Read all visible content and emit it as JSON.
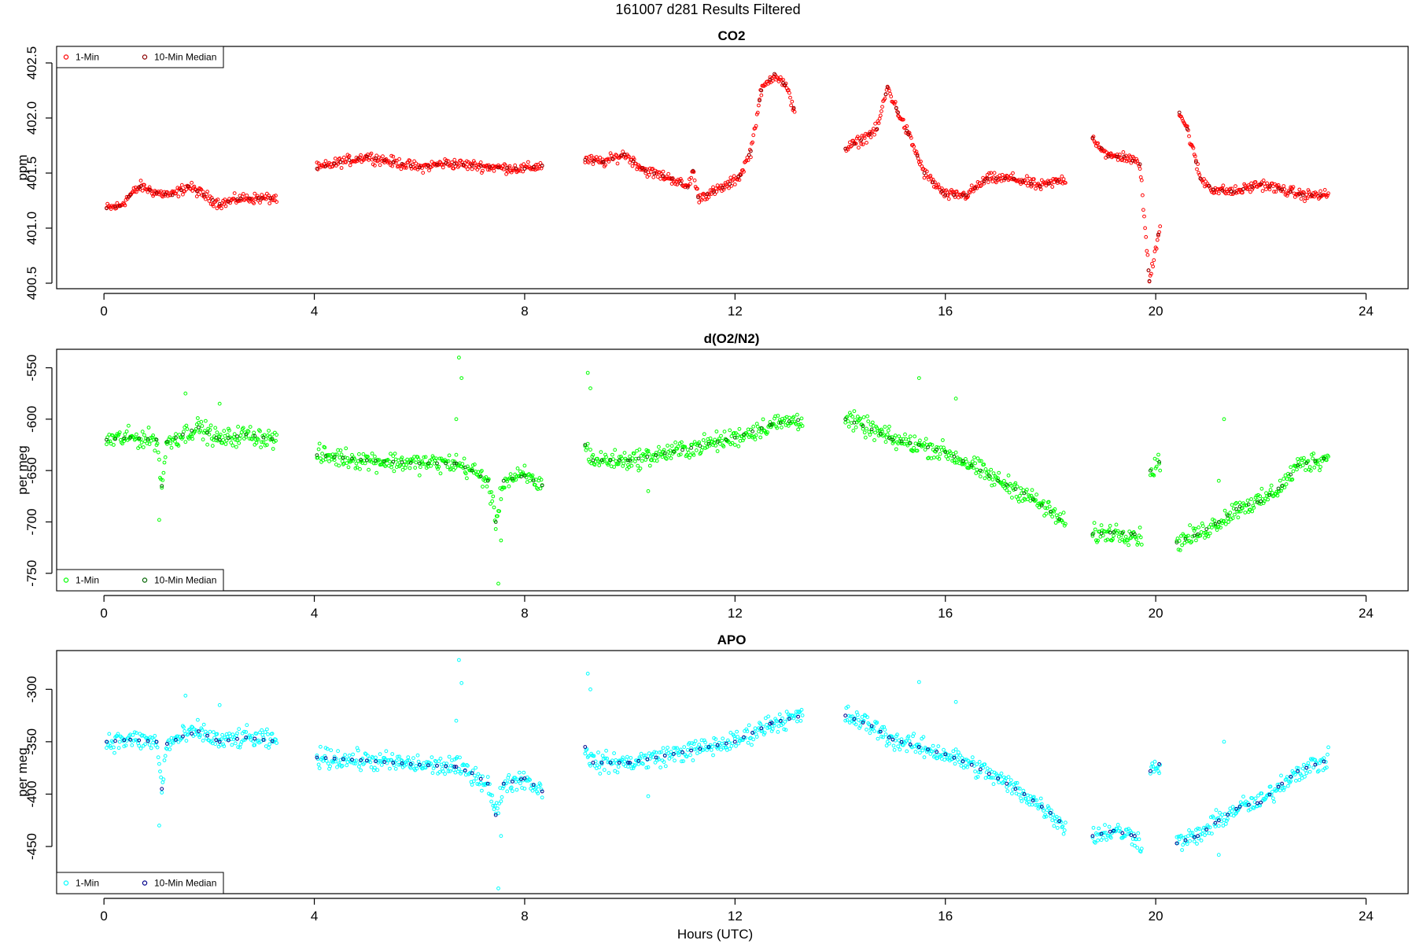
{
  "figure": {
    "title": "161007   d281   Results Filtered",
    "xlabel": "Hours (UTC)"
  },
  "chart_data": [
    {
      "type": "scatter",
      "title": "CO2",
      "xlabel": "",
      "ylabel": "ppm",
      "xlim": [
        -0.9,
        24.8
      ],
      "ylim": [
        400.45,
        402.65
      ],
      "xticks": [
        0,
        4,
        8,
        12,
        16,
        20,
        24
      ],
      "yticks": [
        400.5,
        401.0,
        401.5,
        402.0,
        402.5
      ],
      "ytick_labels": [
        "400.5",
        "401.0",
        "401.5",
        "402.0",
        "402.5"
      ],
      "legend_position": "top-left",
      "series": [
        {
          "name": "1-Min",
          "color": "#ff0000",
          "role": "1min"
        },
        {
          "name": "10-Min Median",
          "color": "#8b0000",
          "role": "median"
        }
      ],
      "trend": [
        [
          [
            0.05,
            401.18
          ],
          [
            0.3,
            401.2
          ],
          [
            0.5,
            401.3
          ],
          [
            0.7,
            401.38
          ],
          [
            1.0,
            401.32
          ],
          [
            1.3,
            401.3
          ],
          [
            1.6,
            401.38
          ],
          [
            1.9,
            401.3
          ],
          [
            2.2,
            401.22
          ],
          [
            2.6,
            401.27
          ],
          [
            3.0,
            401.27
          ],
          [
            3.3,
            401.27
          ]
        ],
        [
          [
            4.05,
            401.54
          ],
          [
            4.5,
            401.6
          ],
          [
            5.0,
            401.65
          ],
          [
            5.5,
            401.6
          ],
          [
            6.0,
            401.55
          ],
          [
            6.5,
            401.59
          ],
          [
            7.0,
            401.57
          ],
          [
            7.5,
            401.55
          ],
          [
            8.0,
            401.54
          ],
          [
            8.35,
            401.57
          ]
        ],
        [
          [
            9.15,
            401.62
          ],
          [
            9.5,
            401.6
          ],
          [
            9.9,
            401.67
          ],
          [
            10.3,
            401.52
          ],
          [
            10.8,
            401.45
          ],
          [
            11.1,
            401.37
          ],
          [
            11.2,
            401.52
          ],
          [
            11.3,
            401.28
          ],
          [
            11.6,
            401.33
          ],
          [
            11.9,
            401.4
          ],
          [
            12.1,
            401.48
          ],
          [
            12.3,
            401.7
          ],
          [
            12.5,
            402.25
          ],
          [
            12.75,
            402.4
          ],
          [
            12.95,
            402.3
          ],
          [
            13.15,
            402.05
          ]
        ],
        [
          [
            14.1,
            401.72
          ],
          [
            14.4,
            401.8
          ],
          [
            14.7,
            401.9
          ],
          [
            14.9,
            402.28
          ],
          [
            15.1,
            402.05
          ],
          [
            15.3,
            401.85
          ],
          [
            15.6,
            401.5
          ],
          [
            16.0,
            401.3
          ],
          [
            16.4,
            401.3
          ],
          [
            16.8,
            401.45
          ],
          [
            17.3,
            401.45
          ],
          [
            17.8,
            401.38
          ],
          [
            18.3,
            401.45
          ]
        ],
        [
          [
            18.8,
            401.82
          ],
          [
            19.1,
            401.65
          ],
          [
            19.4,
            401.65
          ],
          [
            19.7,
            401.58
          ],
          [
            19.88,
            400.52
          ],
          [
            20.1,
            401.07
          ]
        ],
        [
          [
            20.45,
            402.05
          ],
          [
            20.6,
            401.9
          ],
          [
            20.85,
            401.45
          ],
          [
            21.1,
            401.35
          ],
          [
            21.5,
            401.33
          ],
          [
            22.0,
            401.4
          ],
          [
            22.4,
            401.35
          ],
          [
            22.8,
            401.3
          ],
          [
            23.3,
            401.3
          ]
        ]
      ],
      "noise": 0.04
    },
    {
      "type": "scatter",
      "title": "d(O2/N2)",
      "xlabel": "",
      "ylabel": "per meg",
      "xlim": [
        -0.9,
        24.8
      ],
      "ylim": [
        -767,
        -532
      ],
      "xticks": [
        0,
        4,
        8,
        12,
        16,
        20,
        24
      ],
      "yticks": [
        -550,
        -600,
        -650,
        -700,
        -750
      ],
      "ytick_labels": [
        "-550",
        "-600",
        "-650",
        "-700",
        "-750"
      ],
      "legend_position": "bottom-left",
      "series": [
        {
          "name": "1-Min",
          "color": "#00ff00",
          "role": "1min"
        },
        {
          "name": "10-Min Median",
          "color": "#006400",
          "role": "median"
        }
      ],
      "trend": [
        [
          [
            0.05,
            -620
          ],
          [
            0.5,
            -618
          ],
          [
            1.0,
            -620
          ],
          [
            1.1,
            -665
          ],
          [
            1.2,
            -622
          ],
          [
            1.5,
            -615
          ],
          [
            1.8,
            -608
          ],
          [
            2.2,
            -620
          ],
          [
            2.7,
            -615
          ],
          [
            3.3,
            -620
          ]
        ],
        [
          [
            4.05,
            -635
          ],
          [
            5.0,
            -640
          ],
          [
            6.0,
            -643
          ],
          [
            6.7,
            -643
          ],
          [
            7.0,
            -650
          ],
          [
            7.3,
            -660
          ],
          [
            7.45,
            -700
          ],
          [
            7.6,
            -660
          ],
          [
            8.0,
            -655
          ],
          [
            8.35,
            -665
          ]
        ],
        [
          [
            9.15,
            -625
          ],
          [
            9.3,
            -640
          ],
          [
            10.0,
            -640
          ],
          [
            11.0,
            -630
          ],
          [
            12.0,
            -618
          ],
          [
            12.7,
            -605
          ],
          [
            13.3,
            -600
          ]
        ],
        [
          [
            14.1,
            -600
          ],
          [
            14.6,
            -610
          ],
          [
            15.0,
            -620
          ],
          [
            15.5,
            -625
          ],
          [
            16.0,
            -632
          ],
          [
            16.5,
            -645
          ],
          [
            17.0,
            -660
          ],
          [
            17.5,
            -672
          ],
          [
            18.0,
            -690
          ],
          [
            18.3,
            -703
          ]
        ],
        [
          [
            18.8,
            -712
          ],
          [
            19.2,
            -710
          ],
          [
            19.6,
            -712
          ],
          [
            19.75,
            -718
          ]
        ],
        [
          [
            19.9,
            -650
          ],
          [
            20.1,
            -640
          ]
        ],
        [
          [
            20.4,
            -720
          ],
          [
            20.8,
            -712
          ],
          [
            21.2,
            -700
          ],
          [
            21.6,
            -685
          ],
          [
            22.0,
            -680
          ],
          [
            22.4,
            -665
          ],
          [
            22.7,
            -645
          ],
          [
            23.3,
            -637
          ]
        ]
      ],
      "noise": 8,
      "outliers": [
        [
          6.75,
          -540
        ],
        [
          6.8,
          -560
        ],
        [
          6.7,
          -600
        ],
        [
          7.55,
          -718
        ],
        [
          7.5,
          -760
        ],
        [
          9.2,
          -555
        ],
        [
          9.25,
          -570
        ],
        [
          1.05,
          -698
        ],
        [
          15.5,
          -560
        ],
        [
          16.2,
          -580
        ],
        [
          21.2,
          -660
        ],
        [
          21.3,
          -600
        ],
        [
          10.35,
          -670
        ],
        [
          1.55,
          -575
        ],
        [
          2.2,
          -585
        ]
      ]
    },
    {
      "type": "scatter",
      "title": "APO",
      "xlabel": "Hours (UTC)",
      "ylabel": "per meg",
      "xlim": [
        -0.9,
        24.8
      ],
      "ylim": [
        -495,
        -263
      ],
      "xticks": [
        0,
        4,
        8,
        12,
        16,
        20,
        24
      ],
      "yticks": [
        -300,
        -350,
        -400,
        -450
      ],
      "ytick_labels": [
        "-300",
        "-350",
        "-400",
        "-450"
      ],
      "legend_position": "bottom-left",
      "series": [
        {
          "name": "1-Min",
          "color": "#00ffff",
          "role": "1min"
        },
        {
          "name": "10-Min Median",
          "color": "#00008b",
          "role": "median"
        }
      ],
      "trend": [
        [
          [
            0.05,
            -350
          ],
          [
            0.5,
            -348
          ],
          [
            1.0,
            -350
          ],
          [
            1.1,
            -395
          ],
          [
            1.2,
            -352
          ],
          [
            1.5,
            -345
          ],
          [
            1.8,
            -340
          ],
          [
            2.2,
            -350
          ],
          [
            2.7,
            -346
          ],
          [
            3.3,
            -350
          ]
        ],
        [
          [
            4.05,
            -365
          ],
          [
            5.0,
            -368
          ],
          [
            6.0,
            -372
          ],
          [
            6.7,
            -374
          ],
          [
            7.0,
            -380
          ],
          [
            7.3,
            -390
          ],
          [
            7.45,
            -420
          ],
          [
            7.6,
            -390
          ],
          [
            8.0,
            -385
          ],
          [
            8.35,
            -398
          ]
        ],
        [
          [
            9.15,
            -355
          ],
          [
            9.3,
            -370
          ],
          [
            10.0,
            -370
          ],
          [
            11.0,
            -360
          ],
          [
            12.0,
            -350
          ],
          [
            12.7,
            -332
          ],
          [
            13.3,
            -325
          ]
        ],
        [
          [
            14.1,
            -325
          ],
          [
            14.6,
            -335
          ],
          [
            15.0,
            -348
          ],
          [
            15.5,
            -355
          ],
          [
            16.0,
            -362
          ],
          [
            16.5,
            -372
          ],
          [
            17.0,
            -385
          ],
          [
            17.5,
            -400
          ],
          [
            18.0,
            -418
          ],
          [
            18.3,
            -432
          ]
        ],
        [
          [
            18.8,
            -440
          ],
          [
            19.2,
            -435
          ],
          [
            19.6,
            -440
          ],
          [
            19.75,
            -448
          ]
        ],
        [
          [
            19.9,
            -378
          ],
          [
            20.1,
            -370
          ]
        ],
        [
          [
            20.4,
            -447
          ],
          [
            20.8,
            -440
          ],
          [
            21.2,
            -425
          ],
          [
            21.6,
            -412
          ],
          [
            22.0,
            -408
          ],
          [
            22.4,
            -390
          ],
          [
            22.7,
            -378
          ],
          [
            23.3,
            -367
          ]
        ]
      ],
      "noise": 8,
      "outliers": [
        [
          6.75,
          -272
        ],
        [
          6.8,
          -294
        ],
        [
          6.7,
          -330
        ],
        [
          7.55,
          -440
        ],
        [
          7.5,
          -490
        ],
        [
          9.2,
          -285
        ],
        [
          9.25,
          -300
        ],
        [
          1.05,
          -430
        ],
        [
          15.5,
          -293
        ],
        [
          16.2,
          -312
        ],
        [
          21.2,
          -458
        ],
        [
          21.3,
          -350
        ],
        [
          10.35,
          -402
        ],
        [
          1.55,
          -306
        ],
        [
          2.2,
          -315
        ]
      ]
    }
  ]
}
